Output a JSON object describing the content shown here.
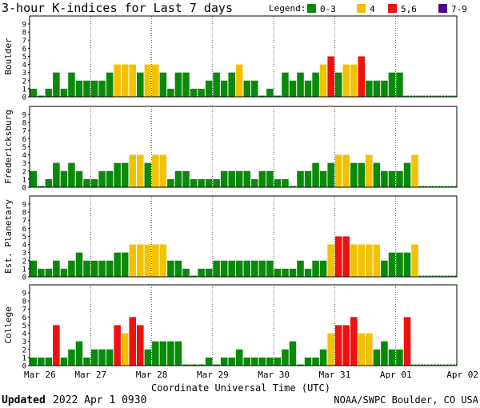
{
  "header": {
    "title": "3-hour K-indices for Last 7 days",
    "legend_label": "Legend:",
    "legend": [
      {
        "label": "0-3",
        "color": "#0a8a0a"
      },
      {
        "label": "4",
        "color": "#f2c200"
      },
      {
        "label": "5,6",
        "color": "#f01010"
      },
      {
        "label": "7-9",
        "color": "#4b0a8c"
      }
    ]
  },
  "footer": {
    "updated_label": "Updated",
    "updated_time": "2022 Apr  1 0930",
    "credit": "NOAA/SWPC Boulder, CO USA"
  },
  "chart_data": {
    "type": "bar",
    "xlabel": "Coordinate Universal Time (UTC)",
    "x_ticks": [
      "Mar 26",
      "Mar 27",
      "Mar 28",
      "Mar 29",
      "Mar 30",
      "Mar 31",
      "Apr 01",
      "Apr 02"
    ],
    "ylim": [
      0,
      9
    ],
    "y_ticks": [
      0,
      1,
      2,
      3,
      4,
      5,
      6,
      7,
      8,
      9
    ],
    "interval_hours": 3,
    "color_bins": [
      {
        "range": "0-3",
        "min": 0,
        "max": 3,
        "color": "#0a8a0a"
      },
      {
        "range": "4",
        "min": 4,
        "max": 4,
        "color": "#f2c200"
      },
      {
        "range": "5,6",
        "min": 5,
        "max": 6,
        "color": "#f01010"
      },
      {
        "range": "7-9",
        "min": 7,
        "max": 9,
        "color": "#4b0a8c"
      }
    ],
    "panels": [
      {
        "name": "Boulder",
        "values": [
          1,
          0,
          1,
          3,
          1,
          3,
          2,
          2,
          2,
          2,
          3,
          4,
          4,
          4,
          3,
          4,
          4,
          3,
          1,
          3,
          3,
          1,
          1,
          2,
          3,
          2,
          3,
          4,
          2,
          2,
          0,
          1,
          0,
          3,
          2,
          3,
          2,
          3,
          4,
          5,
          3,
          4,
          4,
          5,
          2,
          2,
          2,
          3,
          3
        ]
      },
      {
        "name": "Fredericksburg",
        "values": [
          2,
          0,
          1,
          3,
          2,
          3,
          2,
          1,
          1,
          2,
          2,
          3,
          3,
          4,
          4,
          3,
          4,
          4,
          1,
          2,
          2,
          1,
          1,
          1,
          1,
          2,
          2,
          2,
          2,
          1,
          2,
          2,
          1,
          1,
          0,
          2,
          2,
          3,
          2,
          3,
          4,
          4,
          3,
          3,
          4,
          3,
          2,
          2,
          2,
          3,
          4
        ]
      },
      {
        "name": "Est. Planetary",
        "values": [
          2,
          1,
          1,
          2,
          1,
          2,
          3,
          2,
          2,
          2,
          2,
          3,
          3,
          4,
          4,
          4,
          4,
          4,
          2,
          2,
          1,
          0,
          1,
          1,
          2,
          2,
          2,
          2,
          2,
          2,
          2,
          2,
          1,
          1,
          1,
          2,
          1,
          2,
          2,
          4,
          5,
          5,
          4,
          4,
          4,
          4,
          2,
          3,
          3,
          3,
          4
        ]
      },
      {
        "name": "College",
        "values": [
          1,
          1,
          1,
          5,
          1,
          2,
          3,
          1,
          2,
          2,
          2,
          5,
          4,
          6,
          5,
          2,
          3,
          3,
          3,
          3,
          0,
          0,
          0,
          1,
          0,
          1,
          1,
          2,
          1,
          1,
          1,
          1,
          1,
          2,
          3,
          0,
          1,
          1,
          2,
          4,
          5,
          5,
          6,
          4,
          4,
          2,
          3,
          2,
          2,
          6
        ]
      }
    ]
  }
}
